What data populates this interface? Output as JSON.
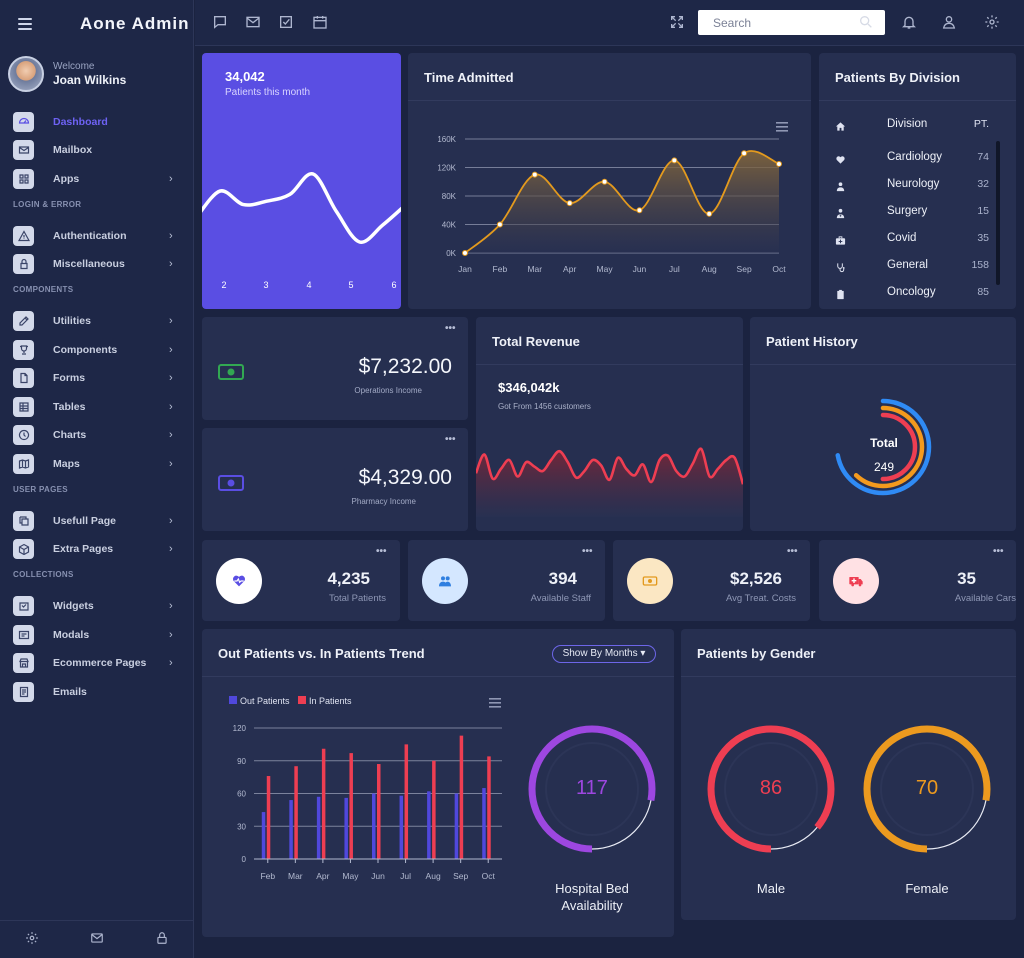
{
  "app": {
    "title": "Aone Admin"
  },
  "user": {
    "welcome": "Welcome",
    "name": "Joan Wilkins"
  },
  "sidebar": {
    "items": [
      {
        "label": "Dashboard",
        "icon": "dashboard-icon",
        "active": true,
        "arrow": false
      },
      {
        "label": "Mailbox",
        "icon": "mailbox-icon",
        "arrow": false
      },
      {
        "label": "Apps",
        "icon": "apps-icon",
        "arrow": true
      },
      {
        "label": "Authentication",
        "icon": "warning-icon",
        "arrow": true
      },
      {
        "label": "Miscellaneous",
        "icon": "lock-icon",
        "arrow": true
      },
      {
        "label": "Utilities",
        "icon": "edit-icon",
        "arrow": true
      },
      {
        "label": "Components",
        "icon": "trophy-icon",
        "arrow": true
      },
      {
        "label": "Forms",
        "icon": "file-icon",
        "arrow": true
      },
      {
        "label": "Tables",
        "icon": "table-icon",
        "arrow": true
      },
      {
        "label": "Charts",
        "icon": "clock-icon",
        "arrow": true
      },
      {
        "label": "Maps",
        "icon": "map-icon",
        "arrow": true
      },
      {
        "label": "Usefull Page",
        "icon": "copy-icon",
        "arrow": true
      },
      {
        "label": "Extra Pages",
        "icon": "box-icon",
        "arrow": true
      },
      {
        "label": "Widgets",
        "icon": "widget-icon",
        "arrow": true
      },
      {
        "label": "Modals",
        "icon": "modal-icon",
        "arrow": true
      },
      {
        "label": "Ecommerce Pages",
        "icon": "shop-icon",
        "arrow": true
      },
      {
        "label": "Emails",
        "icon": "email-icon",
        "arrow": false
      }
    ],
    "sections": [
      "LOGIN & ERROR",
      "COMPONENTS",
      "USER PAGES",
      "COLLECTIONS"
    ],
    "arrow_glyph": "›"
  },
  "search": {
    "placeholder": "Search"
  },
  "patients_month": {
    "value": "34,042",
    "label": "Patients this month",
    "x_ticks": [
      "2",
      "3",
      "4",
      "5",
      "6"
    ]
  },
  "time_admitted": {
    "title": "Time Admitted"
  },
  "division": {
    "title": "Patients By Division",
    "col_division": "Division",
    "col_pt": "PT.",
    "rows": [
      {
        "name": "Cardiology",
        "value": "74",
        "icon": "heart-icon"
      },
      {
        "name": "Neurology",
        "value": "32",
        "icon": "user-icon"
      },
      {
        "name": "Surgery",
        "value": "15",
        "icon": "doctor-icon"
      },
      {
        "name": "Covid",
        "value": "35",
        "icon": "medkit-icon"
      },
      {
        "name": "General",
        "value": "158",
        "icon": "stethoscope-icon"
      },
      {
        "name": "Oncology",
        "value": "85",
        "icon": "clipboard-icon"
      }
    ]
  },
  "ops_income": {
    "value": "$7,232.00",
    "label": "Operations Income"
  },
  "pharmacy_income": {
    "value": "$4,329.00",
    "label": "Pharmacy Income"
  },
  "revenue": {
    "title": "Total Revenue",
    "value": "$346,042k",
    "label": "Got From 1456 customers"
  },
  "history": {
    "title": "Patient History",
    "total_label": "Total",
    "total_value": "249",
    "levels": [
      0.72,
      0.62,
      0.5
    ],
    "colors": [
      "#2f8bf5",
      "#f39a1d",
      "#ee3e52"
    ]
  },
  "stats": [
    {
      "value": "4,235",
      "label": "Total Patients",
      "icon": "heartbeat-icon",
      "bg": "#ffffff",
      "fg": "#5a4ee3"
    },
    {
      "value": "394",
      "label": "Available Staff",
      "icon": "staff-icon",
      "bg": "#d4e7ff",
      "fg": "#2f7fe0"
    },
    {
      "value": "$2,526",
      "label": "Avg Treat. Costs",
      "icon": "money-icon",
      "bg": "#fbe7c3",
      "fg": "#e39a1e"
    },
    {
      "value": "35",
      "label": "Available Cars",
      "icon": "ambulance-icon",
      "bg": "#ffe1e4",
      "fg": "#ee3e52"
    }
  ],
  "trend": {
    "title": "Out Patients vs. In Patients Trend",
    "button": "Show By Months ▾"
  },
  "bed": {
    "value": "117",
    "label1": "Hospital Bed",
    "label2": "Availability",
    "level": 0.78,
    "color": "#9d47e0"
  },
  "gender": {
    "title": "Patients by Gender",
    "male": {
      "value": "86",
      "label": "Male",
      "level": 0.86,
      "color": "#ee3e52"
    },
    "female": {
      "value": "70",
      "label": "Female",
      "level": 0.78,
      "color": "#ec9a1f"
    }
  },
  "chart_data": [
    {
      "type": "area",
      "title": "Time Admitted",
      "categories": [
        "Jan",
        "Feb",
        "Mar",
        "Apr",
        "May",
        "Jun",
        "Jul",
        "Aug",
        "Sep",
        "Oct"
      ],
      "values": [
        0,
        40000,
        110000,
        70000,
        100000,
        60000,
        130000,
        55000,
        140000,
        125000
      ],
      "y_ticks": [
        "0K",
        "40K",
        "80K",
        "120K",
        "160K"
      ],
      "ylim": [
        0,
        160000
      ],
      "color": "#e39a1e",
      "grid": true
    },
    {
      "type": "bar",
      "categories": [
        "Feb",
        "Mar",
        "Apr",
        "May",
        "Jun",
        "Jul",
        "Aug",
        "Sep",
        "Oct"
      ],
      "series": [
        {
          "name": "Out Patients",
          "values": [
            43,
            54,
            57,
            56,
            60,
            58,
            62,
            60,
            65
          ],
          "color": "#5048dc"
        },
        {
          "name": "In Patients",
          "values": [
            76,
            85,
            101,
            97,
            87,
            105,
            90,
            113,
            94
          ],
          "color": "#ee3e52"
        }
      ],
      "y_ticks": [
        "0",
        "30",
        "60",
        "90",
        "120"
      ],
      "ylim": [
        0,
        120
      ],
      "legend": "top-left",
      "grid": true
    },
    {
      "type": "line",
      "title": "Patients this month",
      "x": [
        1.5,
        2,
        2.5,
        3,
        3.5,
        4,
        4.5,
        5,
        5.5,
        6
      ],
      "values": [
        0.55,
        0.4,
        0.48,
        0.46,
        0.42,
        0.3,
        0.52,
        0.7,
        0.6,
        0.48
      ],
      "color": "#ffffff"
    },
    {
      "type": "area",
      "title": "Total Revenue",
      "values": [
        0.42,
        0.25,
        0.47,
        0.38,
        0.3,
        0.45,
        0.32,
        0.36,
        0.4,
        0.3,
        0.22,
        0.32,
        0.46,
        0.4,
        0.3,
        0.35,
        0.48,
        0.28,
        0.38,
        0.44,
        0.34,
        0.5,
        0.3,
        0.26,
        0.4,
        0.45,
        0.33,
        0.2,
        0.45,
        0.38,
        0.3,
        0.28,
        0.52
      ],
      "color": "#ee3e52"
    }
  ]
}
